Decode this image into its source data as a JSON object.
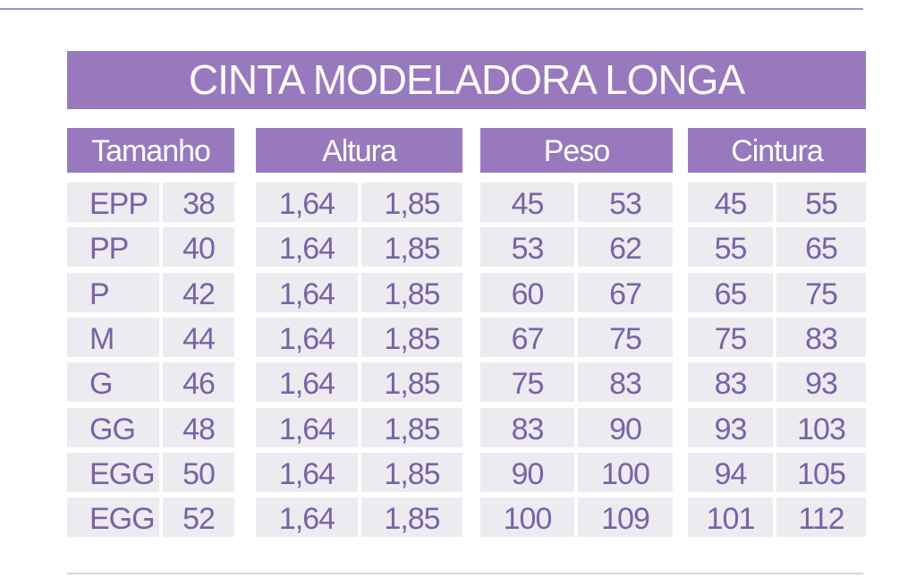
{
  "header": {
    "title": "CINTA MODELADORA LONGA"
  },
  "table": {
    "columns": [
      "Tamanho",
      "Altura",
      "Peso",
      "Cintura"
    ],
    "rows": [
      [
        "EPP",
        38,
        "1,64",
        "1,85",
        45,
        53,
        45,
        55
      ],
      [
        "PP",
        40,
        "1,64",
        "1,85",
        53,
        62,
        55,
        65
      ],
      [
        "P",
        42,
        "1,64",
        "1,85",
        60,
        67,
        65,
        75
      ],
      [
        "M",
        44,
        "1,64",
        "1,85",
        67,
        75,
        75,
        83
      ],
      [
        "G",
        46,
        "1,64",
        "1,85",
        75,
        83,
        83,
        93
      ],
      [
        "GG",
        48,
        "1,64",
        "1,85",
        83,
        90,
        93,
        103
      ],
      [
        "EGG",
        50,
        "1,64",
        "1,85",
        90,
        100,
        94,
        105
      ],
      [
        "EGG",
        52,
        "1,64",
        "1,85",
        100,
        109,
        101,
        112
      ]
    ]
  }
}
